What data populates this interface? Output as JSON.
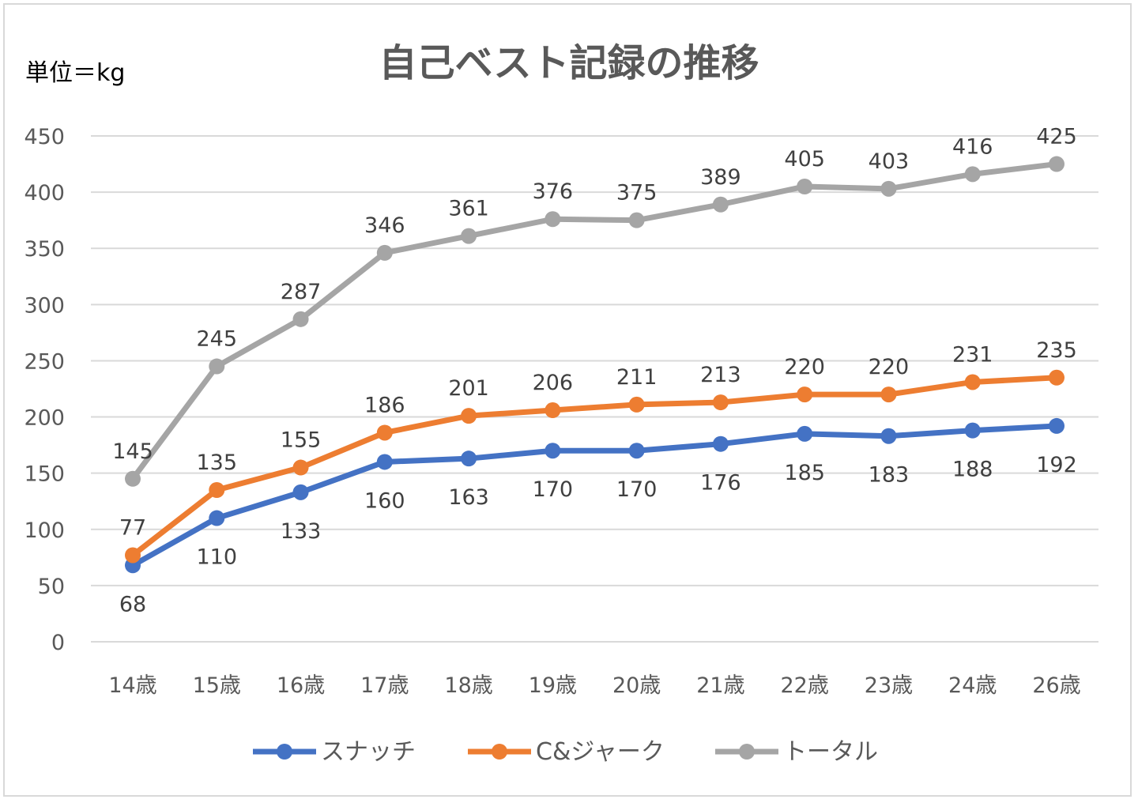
{
  "chart_data": {
    "type": "line",
    "title": "自己ベスト記録の推移",
    "unit_label": "単位＝kg",
    "xlabel": "",
    "ylabel": "",
    "ylim": [
      0,
      450
    ],
    "yticks": [
      0,
      50,
      100,
      150,
      200,
      250,
      300,
      350,
      400,
      450
    ],
    "grid": true,
    "legend_position": "bottom",
    "categories": [
      "14歳",
      "15歳",
      "16歳",
      "17歳",
      "18歳",
      "19歳",
      "20歳",
      "21歳",
      "22歳",
      "23歳",
      "24歳",
      "26歳"
    ],
    "series": [
      {
        "name": "スナッチ",
        "color": "#4472C4",
        "label_position": "below",
        "values": [
          68,
          110,
          133,
          160,
          163,
          170,
          170,
          176,
          185,
          183,
          188,
          192
        ]
      },
      {
        "name": "C&ジャーク",
        "color": "#ED7D31",
        "label_position": "above",
        "values": [
          77,
          135,
          155,
          186,
          201,
          206,
          211,
          213,
          220,
          220,
          231,
          235
        ]
      },
      {
        "name": "トータル",
        "color": "#A5A5A5",
        "label_position": "above",
        "values": [
          145,
          245,
          287,
          346,
          361,
          376,
          375,
          389,
          405,
          403,
          416,
          425
        ]
      }
    ]
  }
}
